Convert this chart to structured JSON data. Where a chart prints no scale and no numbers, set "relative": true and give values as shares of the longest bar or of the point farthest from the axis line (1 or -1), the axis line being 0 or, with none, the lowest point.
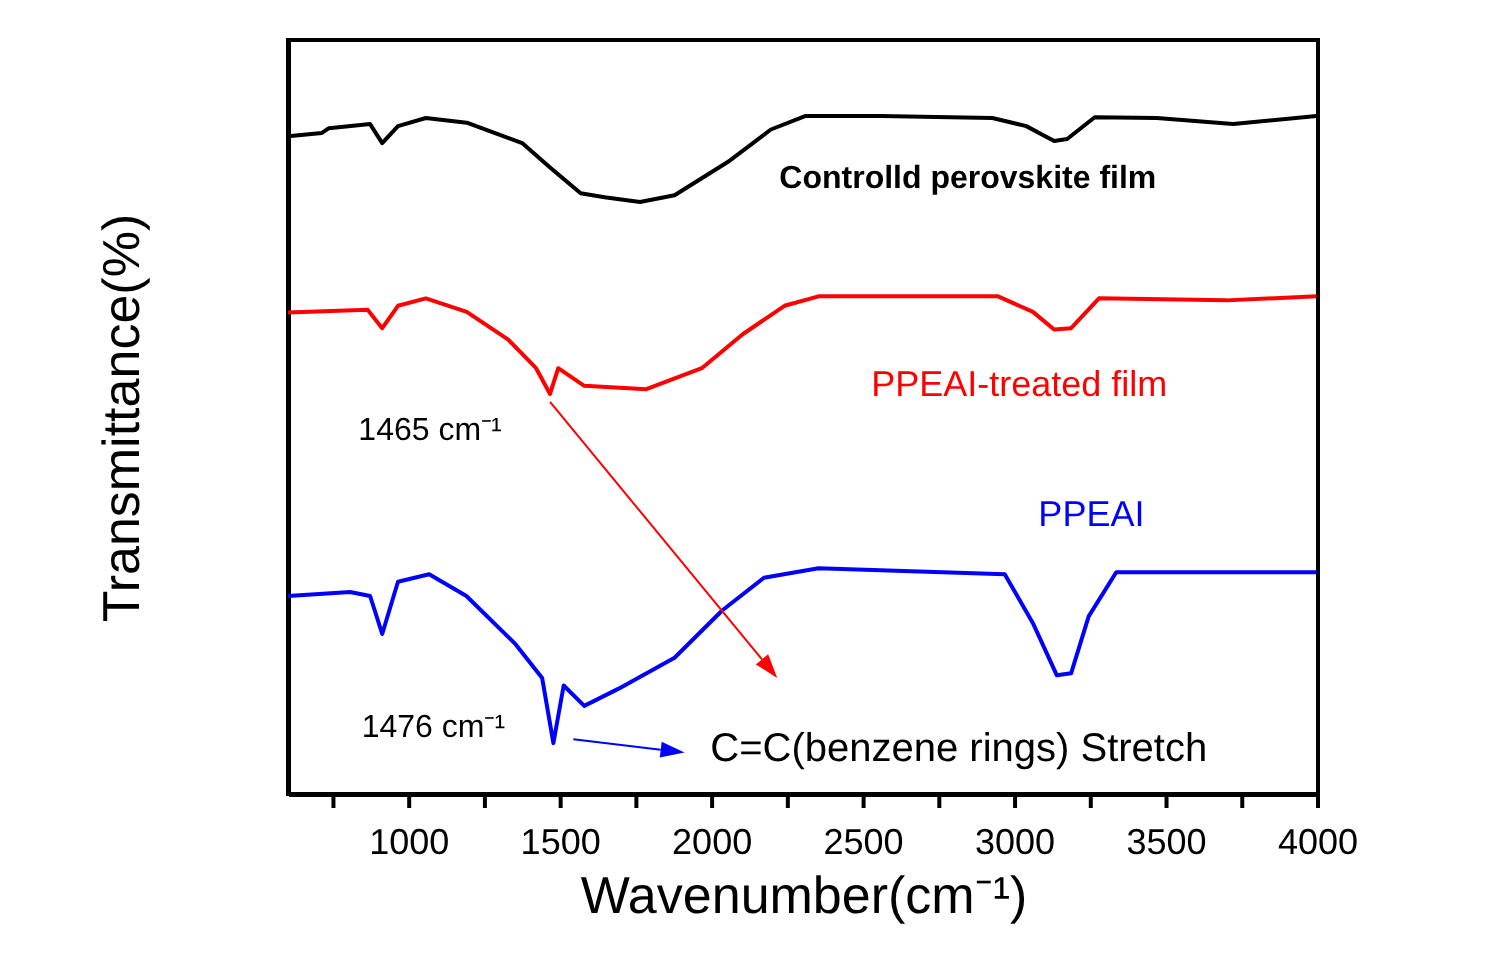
{
  "chart_data": {
    "type": "line",
    "relative": true,
    "xlabel": "Wavenumber(cm⁻¹)",
    "ylabel": "Transmittance(%)",
    "xlim": [
      600,
      4000
    ],
    "xticks": [
      {
        "value": 750,
        "label": null
      },
      1000,
      {
        "value": 1250,
        "label": null
      },
      1500,
      {
        "value": 1750,
        "label": null
      },
      2000,
      {
        "value": 2250,
        "label": null
      },
      2500,
      {
        "value": 2750,
        "label": null
      },
      3000,
      {
        "value": 3250,
        "label": null
      },
      3500,
      {
        "value": 3750,
        "label": null
      },
      4000
    ],
    "grid": false,
    "legend": false,
    "marker": "none",
    "line_style": "solid",
    "series": [
      {
        "name": "Controlld perovskite film",
        "color": "#000000",
        "x": [
          600,
          712,
          735,
          871,
          911,
          963,
          1055,
          1190,
          1373,
          1465,
          1566,
          1645,
          1762,
          1876,
          2058,
          2194,
          2309,
          2557,
          2925,
          3037,
          3129,
          3172,
          3263,
          3468,
          3720,
          3995
        ],
        "values": [
          0.97,
          0.975,
          0.982,
          0.988,
          0.96,
          0.985,
          0.997,
          0.99,
          0.96,
          0.924,
          0.886,
          0.88,
          0.873,
          0.883,
          0.934,
          0.98,
          1.0,
          1.0,
          0.997,
          0.985,
          0.963,
          0.966,
          0.998,
          0.997,
          0.988,
          1.0
        ]
      },
      {
        "name": "PPEAI-treated film",
        "color": "#ff0000",
        "x": [
          600,
          863,
          911,
          963,
          1055,
          1190,
          1327,
          1419,
          1465,
          1492,
          1578,
          1783,
          1966,
          2101,
          2239,
          2351,
          2944,
          3059,
          3129,
          3185,
          3277,
          3698,
          3995
        ],
        "values": [
          0.71,
          0.714,
          0.687,
          0.72,
          0.731,
          0.711,
          0.67,
          0.628,
          0.59,
          0.628,
          0.602,
          0.597,
          0.628,
          0.678,
          0.72,
          0.734,
          0.734,
          0.711,
          0.685,
          0.687,
          0.731,
          0.728,
          0.734
        ]
      },
      {
        "name": "PPEAI",
        "color": "#0000ff",
        "x": [
          600,
          805,
          871,
          911,
          963,
          1066,
          1189,
          1351,
          1439,
          1476,
          1510,
          1578,
          1690,
          1876,
          2034,
          2171,
          2351,
          2966,
          3059,
          3138,
          3185,
          3243,
          3334,
          3995
        ],
        "values": [
          0.292,
          0.298,
          0.292,
          0.236,
          0.313,
          0.324,
          0.292,
          0.221,
          0.171,
          0.075,
          0.16,
          0.13,
          0.155,
          0.201,
          0.271,
          0.319,
          0.333,
          0.324,
          0.252,
          0.175,
          0.178,
          0.262,
          0.327,
          0.327
        ]
      }
    ],
    "annotations": [
      {
        "text": "1465 cm⁻¹",
        "x": 1465,
        "y": 0.59
      },
      {
        "text": "1476 cm⁻¹",
        "x": 1476,
        "y": 0.075
      },
      "C=C(benzene rings) Stretch"
    ]
  }
}
